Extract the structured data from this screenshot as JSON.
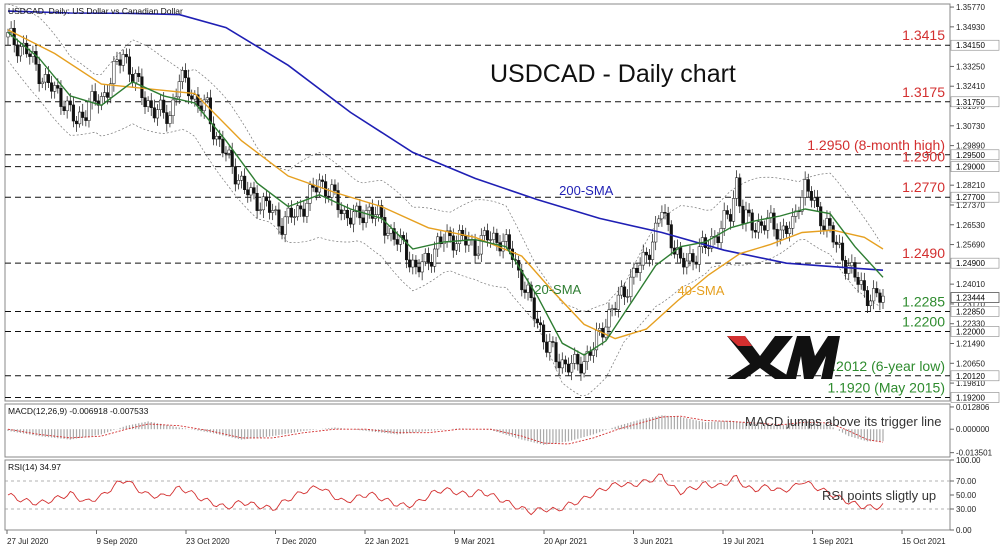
{
  "chart_data": {
    "type": "candlestick",
    "header": "USDCAD, Daily:  US Dollar vs Canadian Dollar",
    "title": "USDCAD - Daily chart",
    "x_labels": [
      "27 Jul 2020",
      "9 Sep 2020",
      "23 Oct 2020",
      "7 Dec 2020",
      "22 Jan 2021",
      "9 Mar 2021",
      "20 Apr 2021",
      "3 Jun 2021",
      "19 Jul 2021",
      "1 Sep 2021",
      "15 Oct 2021"
    ],
    "y_ticks": [
      "1.35770",
      "1.34930",
      "1.33250",
      "1.32410",
      "1.31570",
      "1.30730",
      "1.29890",
      "1.28210",
      "1.27370",
      "1.26530",
      "1.25690",
      "1.24010",
      "1.23170",
      "1.22330",
      "1.21490",
      "1.20650",
      "1.19810"
    ],
    "ylim": [
      1.1905,
      1.359
    ],
    "close_path": [
      [
        0,
        1.345
      ],
      [
        6,
        1.339
      ],
      [
        12,
        1.326
      ],
      [
        18,
        1.318
      ],
      [
        22,
        1.308
      ],
      [
        26,
        1.317
      ],
      [
        30,
        1.318
      ],
      [
        34,
        1.33
      ],
      [
        37,
        1.338
      ],
      [
        40,
        1.329
      ],
      [
        44,
        1.318
      ],
      [
        48,
        1.313
      ],
      [
        52,
        1.312
      ],
      [
        55,
        1.327
      ],
      [
        58,
        1.324
      ],
      [
        61,
        1.316
      ],
      [
        64,
        1.315
      ],
      [
        67,
        1.302
      ],
      [
        70,
        1.295
      ],
      [
        73,
        1.288
      ],
      [
        76,
        1.28
      ],
      [
        80,
        1.276
      ],
      [
        84,
        1.272
      ],
      [
        88,
        1.266
      ],
      [
        92,
        1.27
      ],
      [
        96,
        1.275
      ],
      [
        100,
        1.284
      ],
      [
        104,
        1.278
      ],
      [
        108,
        1.27
      ],
      [
        112,
        1.268
      ],
      [
        116,
        1.272
      ],
      [
        120,
        1.267
      ],
      [
        124,
        1.26
      ],
      [
        128,
        1.254
      ],
      [
        131,
        1.246
      ],
      [
        134,
        1.249
      ],
      [
        138,
        1.257
      ],
      [
        142,
        1.26
      ],
      [
        146,
        1.259
      ],
      [
        150,
        1.256
      ],
      [
        154,
        1.26
      ],
      [
        158,
        1.259
      ],
      [
        162,
        1.253
      ],
      [
        166,
        1.238
      ],
      [
        170,
        1.225
      ],
      [
        173,
        1.214
      ],
      [
        176,
        1.209
      ],
      [
        179,
        1.206
      ],
      [
        182,
        1.205
      ],
      [
        185,
        1.208
      ],
      [
        188,
        1.213
      ],
      [
        192,
        1.225
      ],
      [
        196,
        1.233
      ],
      [
        200,
        1.242
      ],
      [
        204,
        1.25
      ],
      [
        208,
        1.262
      ],
      [
        210,
        1.272
      ],
      [
        212,
        1.264
      ],
      [
        216,
        1.248
      ],
      [
        220,
        1.252
      ],
      [
        224,
        1.256
      ],
      [
        228,
        1.262
      ],
      [
        232,
        1.27
      ],
      [
        234,
        1.284
      ],
      [
        236,
        1.268
      ],
      [
        240,
        1.265
      ],
      [
        244,
        1.266
      ],
      [
        248,
        1.263
      ],
      [
        252,
        1.264
      ],
      [
        254,
        1.276
      ],
      [
        256,
        1.282
      ],
      [
        258,
        1.277
      ],
      [
        260,
        1.27
      ],
      [
        263,
        1.266
      ],
      [
        266,
        1.256
      ],
      [
        269,
        1.25
      ],
      [
        272,
        1.243
      ],
      [
        275,
        1.237
      ],
      [
        278,
        1.234
      ],
      [
        281,
        1.2344
      ]
    ],
    "total_bars": 282,
    "series": [
      {
        "name": "200-SMA",
        "color": "#1f1fb4",
        "values": [
          [
            0,
            1.356
          ],
          [
            20,
            1.3552
          ],
          [
            40,
            1.355
          ],
          [
            55,
            1.3545
          ],
          [
            70,
            1.349
          ],
          [
            90,
            1.333
          ],
          [
            110,
            1.313
          ],
          [
            130,
            1.296
          ],
          [
            150,
            1.285
          ],
          [
            170,
            1.276
          ],
          [
            190,
            1.268
          ],
          [
            210,
            1.262
          ],
          [
            230,
            1.2545
          ],
          [
            250,
            1.249
          ],
          [
            265,
            1.2475
          ],
          [
            281,
            1.246
          ]
        ]
      },
      {
        "name": "40-SMA",
        "color": "#e6a020",
        "values": [
          [
            0,
            1.348
          ],
          [
            15,
            1.338
          ],
          [
            30,
            1.325
          ],
          [
            45,
            1.323
          ],
          [
            60,
            1.321
          ],
          [
            75,
            1.301
          ],
          [
            90,
            1.286
          ],
          [
            105,
            1.279
          ],
          [
            120,
            1.273
          ],
          [
            135,
            1.264
          ],
          [
            150,
            1.26
          ],
          [
            165,
            1.252
          ],
          [
            175,
            1.237
          ],
          [
            185,
            1.223
          ],
          [
            195,
            1.217
          ],
          [
            205,
            1.221
          ],
          [
            215,
            1.233
          ],
          [
            225,
            1.244
          ],
          [
            235,
            1.253
          ],
          [
            245,
            1.257
          ],
          [
            255,
            1.262
          ],
          [
            265,
            1.263
          ],
          [
            275,
            1.26
          ],
          [
            281,
            1.255
          ]
        ]
      },
      {
        "name": "20-SMA",
        "color": "#2e7d32",
        "values": [
          [
            0,
            1.347
          ],
          [
            10,
            1.336
          ],
          [
            20,
            1.32
          ],
          [
            30,
            1.316
          ],
          [
            40,
            1.326
          ],
          [
            50,
            1.32
          ],
          [
            60,
            1.317
          ],
          [
            70,
            1.301
          ],
          [
            80,
            1.283
          ],
          [
            90,
            1.273
          ],
          [
            100,
            1.278
          ],
          [
            110,
            1.272
          ],
          [
            120,
            1.268
          ],
          [
            130,
            1.255
          ],
          [
            140,
            1.258
          ],
          [
            150,
            1.259
          ],
          [
            160,
            1.256
          ],
          [
            170,
            1.235
          ],
          [
            178,
            1.215
          ],
          [
            185,
            1.21
          ],
          [
            192,
            1.216
          ],
          [
            200,
            1.232
          ],
          [
            208,
            1.248
          ],
          [
            216,
            1.256
          ],
          [
            224,
            1.258
          ],
          [
            232,
            1.264
          ],
          [
            240,
            1.267
          ],
          [
            248,
            1.269
          ],
          [
            256,
            1.272
          ],
          [
            264,
            1.27
          ],
          [
            272,
            1.256
          ],
          [
            281,
            1.243
          ]
        ]
      }
    ],
    "levels": [
      {
        "label": "1.3415",
        "value": 1.3415,
        "color": "#d32f2f",
        "box": "1.34150"
      },
      {
        "label": "1.3175",
        "value": 1.3175,
        "color": "#d32f2f",
        "box": "1.31750"
      },
      {
        "label": "1.2950 (8-month high)",
        "value": 1.295,
        "color": "#d32f2f",
        "box": "1.29500"
      },
      {
        "label": "1.2900",
        "value": 1.29,
        "color": "#d32f2f",
        "box": "1.29000"
      },
      {
        "label": "1.2770",
        "value": 1.277,
        "color": "#d32f2f",
        "box": "1.27700"
      },
      {
        "label": "1.2490",
        "value": 1.249,
        "color": "#d32f2f",
        "box": "1.24900"
      },
      {
        "label": "1.2285",
        "value": 1.2285,
        "color": "#2e8b2e",
        "box": "1.22850"
      },
      {
        "label": "1.2200",
        "value": 1.22,
        "color": "#2e8b2e",
        "box": "1.22000"
      },
      {
        "label": "1.2012 (6-year low)",
        "value": 1.2012,
        "color": "#2e8b2e",
        "box": "1.20120"
      },
      {
        "label": "1.1920 (May 2015)",
        "value": 1.192,
        "color": "#2e8b2e",
        "box": "1.19200"
      }
    ],
    "current_price_box": "1.23444",
    "sma_labels": [
      {
        "text": "200-SMA",
        "color": "#1f1fb4",
        "bar": 177,
        "value": 1.278
      },
      {
        "text": "20-SMA",
        "color": "#2e7d32",
        "bar": 169,
        "value": 1.236
      },
      {
        "text": "40-SMA",
        "color": "#e6a020",
        "bar": 215,
        "value": 1.2355
      }
    ],
    "macd": {
      "header": "MACD(12,26,9) -0.006918 -0.007533",
      "ticks": [
        "0.012806",
        "0.000000",
        "-0.013501"
      ],
      "note": "MACD jumps above its trigger line",
      "hist": [
        [
          0,
          -0.001
        ],
        [
          10,
          -0.004
        ],
        [
          20,
          -0.006
        ],
        [
          30,
          -0.003
        ],
        [
          38,
          0.002
        ],
        [
          45,
          0.0045
        ],
        [
          55,
          0.001
        ],
        [
          65,
          -0.002
        ],
        [
          75,
          -0.006
        ],
        [
          85,
          -0.004
        ],
        [
          95,
          -0.001
        ],
        [
          105,
          0.001
        ],
        [
          115,
          -0.001
        ],
        [
          125,
          -0.003
        ],
        [
          135,
          -0.001
        ],
        [
          145,
          0.0005
        ],
        [
          155,
          -0.0005
        ],
        [
          165,
          -0.006
        ],
        [
          172,
          -0.009
        ],
        [
          180,
          -0.007
        ],
        [
          188,
          -0.003
        ],
        [
          196,
          0.002
        ],
        [
          204,
          0.006
        ],
        [
          210,
          0.008
        ],
        [
          216,
          0.007
        ],
        [
          224,
          0.004
        ],
        [
          232,
          0.005
        ],
        [
          240,
          0.003
        ],
        [
          248,
          0.002
        ],
        [
          256,
          0.005
        ],
        [
          264,
          0.002
        ],
        [
          270,
          -0.004
        ],
        [
          276,
          -0.007
        ],
        [
          281,
          -0.0069
        ]
      ],
      "signal": [
        [
          0,
          0.0
        ],
        [
          10,
          -0.003
        ],
        [
          20,
          -0.005
        ],
        [
          30,
          -0.004
        ],
        [
          38,
          0.0
        ],
        [
          45,
          0.003
        ],
        [
          55,
          0.002
        ],
        [
          65,
          -0.001
        ],
        [
          75,
          -0.005
        ],
        [
          85,
          -0.005
        ],
        [
          95,
          -0.002
        ],
        [
          105,
          0.0
        ],
        [
          115,
          0.0
        ],
        [
          125,
          -0.002
        ],
        [
          135,
          -0.002
        ],
        [
          145,
          0.0
        ],
        [
          155,
          0.0
        ],
        [
          165,
          -0.004
        ],
        [
          172,
          -0.008
        ],
        [
          180,
          -0.0085
        ],
        [
          188,
          -0.005
        ],
        [
          196,
          0.0
        ],
        [
          204,
          0.004
        ],
        [
          210,
          0.007
        ],
        [
          216,
          0.0075
        ],
        [
          224,
          0.005
        ],
        [
          232,
          0.0045
        ],
        [
          240,
          0.0035
        ],
        [
          248,
          0.0025
        ],
        [
          256,
          0.004
        ],
        [
          264,
          0.0035
        ],
        [
          270,
          -0.001
        ],
        [
          276,
          -0.006
        ],
        [
          281,
          -0.0075
        ]
      ],
      "ylim": [
        -0.016,
        0.0145
      ]
    },
    "rsi": {
      "header": "RSI(14) 34.97",
      "ticks": [
        "100.00",
        "70.00",
        "50.00",
        "30.00",
        "0.00"
      ],
      "note": "RSI points sligtly up",
      "values": [
        [
          0,
          50
        ],
        [
          5,
          42
        ],
        [
          10,
          38
        ],
        [
          15,
          44
        ],
        [
          20,
          52
        ],
        [
          25,
          40
        ],
        [
          30,
          48
        ],
        [
          35,
          66
        ],
        [
          38,
          72
        ],
        [
          41,
          60
        ],
        [
          45,
          50
        ],
        [
          50,
          48
        ],
        [
          55,
          60
        ],
        [
          58,
          55
        ],
        [
          62,
          45
        ],
        [
          66,
          38
        ],
        [
          70,
          32
        ],
        [
          75,
          40
        ],
        [
          80,
          35
        ],
        [
          85,
          30
        ],
        [
          90,
          44
        ],
        [
          95,
          55
        ],
        [
          100,
          62
        ],
        [
          104,
          50
        ],
        [
          108,
          40
        ],
        [
          112,
          46
        ],
        [
          116,
          52
        ],
        [
          120,
          45
        ],
        [
          124,
          38
        ],
        [
          128,
          34
        ],
        [
          132,
          40
        ],
        [
          136,
          52
        ],
        [
          140,
          58
        ],
        [
          144,
          54
        ],
        [
          148,
          50
        ],
        [
          152,
          55
        ],
        [
          156,
          48
        ],
        [
          160,
          40
        ],
        [
          164,
          32
        ],
        [
          168,
          26
        ],
        [
          172,
          30
        ],
        [
          176,
          28
        ],
        [
          180,
          36
        ],
        [
          184,
          42
        ],
        [
          188,
          52
        ],
        [
          192,
          60
        ],
        [
          196,
          66
        ],
        [
          200,
          64
        ],
        [
          204,
          68
        ],
        [
          208,
          74
        ],
        [
          210,
          78
        ],
        [
          213,
          62
        ],
        [
          216,
          54
        ],
        [
          220,
          60
        ],
        [
          224,
          66
        ],
        [
          228,
          62
        ],
        [
          232,
          70
        ],
        [
          234,
          76
        ],
        [
          237,
          60
        ],
        [
          240,
          58
        ],
        [
          244,
          62
        ],
        [
          248,
          56
        ],
        [
          252,
          60
        ],
        [
          255,
          70
        ],
        [
          258,
          64
        ],
        [
          262,
          56
        ],
        [
          266,
          48
        ],
        [
          270,
          40
        ],
        [
          274,
          34
        ],
        [
          278,
          32
        ],
        [
          281,
          35
        ]
      ]
    }
  },
  "brand": "XM"
}
